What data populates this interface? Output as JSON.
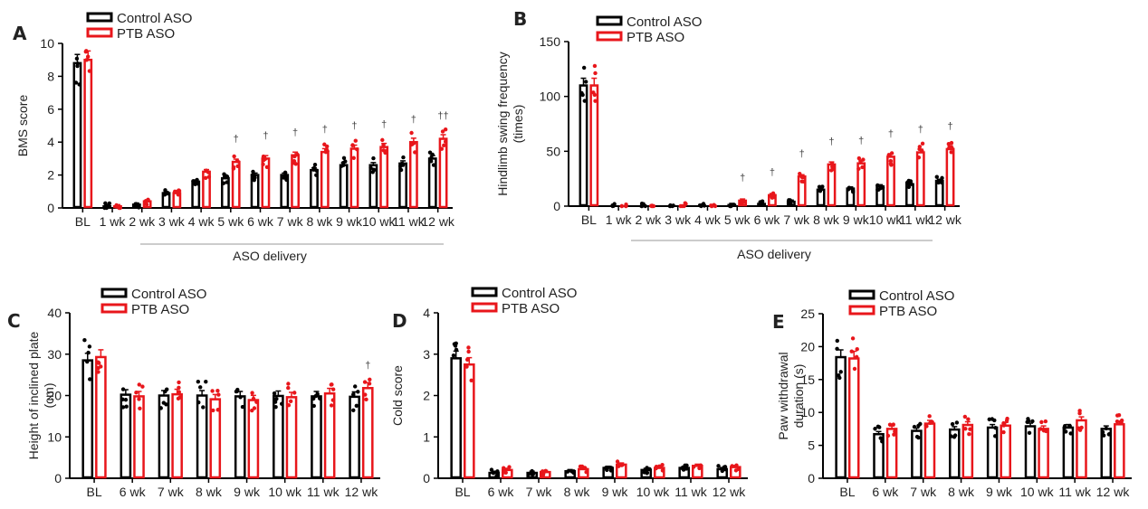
{
  "colors": {
    "control": "#000000",
    "ptb": "#e8161b"
  },
  "legend": {
    "control": "Control ASO",
    "ptb": "PTB ASO"
  },
  "chart_data": [
    {
      "panel": "A",
      "type": "bar",
      "ylabel": "BMS score",
      "xlabel": "ASO delivery",
      "ylim": [
        0,
        10
      ],
      "yticks": [
        0,
        2,
        4,
        6,
        8,
        10
      ],
      "categories": [
        "BL",
        "1 wk",
        "2 wk",
        "3 wk",
        "4 wk",
        "5 wk",
        "6 wk",
        "7 wk",
        "8 wk",
        "9 wk",
        "10 wk",
        "11 wk",
        "12 wk"
      ],
      "series": [
        {
          "name": "Control ASO",
          "values": [
            8.8,
            0.1,
            0.2,
            0.9,
            1.6,
            1.8,
            2.0,
            2.0,
            2.3,
            2.6,
            2.6,
            2.7,
            3.0
          ]
        },
        {
          "name": "PTB ASO",
          "values": [
            9.0,
            0.1,
            0.4,
            0.9,
            2.2,
            2.8,
            3.0,
            3.2,
            3.4,
            3.6,
            3.7,
            4.0,
            4.2
          ]
        }
      ],
      "annotations": [
        "",
        "",
        "",
        "",
        "",
        "†",
        "†",
        "†",
        "†",
        "†",
        "†",
        "†",
        "††"
      ],
      "bracket_label": "ASO delivery"
    },
    {
      "panel": "B",
      "type": "bar",
      "ylabel": "Hindlimb swing frequency",
      "ylabel2": "(times)",
      "xlabel": "ASO delivery",
      "ylim": [
        0,
        150
      ],
      "yticks": [
        0,
        50,
        100,
        150
      ],
      "categories": [
        "BL",
        "1 wk",
        "2 wk",
        "3 wk",
        "4 wk",
        "5 wk",
        "6 wk",
        "7 wk",
        "8 wk",
        "9 wk",
        "10 wk",
        "11 wk",
        "12 wk"
      ],
      "series": [
        {
          "name": "Control ASO",
          "values": [
            110,
            0,
            0,
            0,
            0,
            1,
            2,
            4,
            15,
            16,
            18,
            20,
            23
          ]
        },
        {
          "name": "PTB ASO",
          "values": [
            110,
            0,
            0,
            0,
            0,
            5,
            10,
            27,
            38,
            39,
            45,
            49,
            52
          ]
        }
      ],
      "annotations": [
        "",
        "",
        "",
        "",
        "",
        "†",
        "†",
        "†",
        "†",
        "†",
        "†",
        "†",
        "†"
      ],
      "bracket_label": "ASO delivery"
    },
    {
      "panel": "C",
      "type": "bar",
      "ylabel": "Height of inclined plate",
      "ylabel2": "(cm)",
      "xlabel": "",
      "ylim": [
        0,
        40
      ],
      "yticks": [
        0,
        10,
        20,
        30,
        40
      ],
      "categories": [
        "BL",
        "6 wk",
        "7 wk",
        "8 wk",
        "9 wk",
        "10 wk",
        "11 wk",
        "12 wk"
      ],
      "series": [
        {
          "name": "Control ASO",
          "values": [
            28.5,
            20.2,
            20.0,
            20.0,
            19.8,
            19.9,
            19.8,
            19.7
          ]
        },
        {
          "name": "PTB ASO",
          "values": [
            29.3,
            19.8,
            20.3,
            19.1,
            18.9,
            19.6,
            20.5,
            21.8
          ]
        }
      ],
      "annotations": [
        "",
        "",
        "",
        "",
        "",
        "",
        "",
        "†"
      ]
    },
    {
      "panel": "D",
      "type": "bar",
      "ylabel": "Cold score",
      "xlabel": "",
      "ylim": [
        0,
        4
      ],
      "yticks": [
        0,
        1,
        2,
        3,
        4
      ],
      "categories": [
        "BL",
        "6 wk",
        "7 wk",
        "8 wk",
        "9 wk",
        "10 wk",
        "11 wk",
        "12 wk"
      ],
      "series": [
        {
          "name": "Control ASO",
          "values": [
            2.9,
            0.13,
            0.13,
            0.17,
            0.25,
            0.2,
            0.25,
            0.22
          ]
        },
        {
          "name": "PTB ASO",
          "values": [
            2.75,
            0.2,
            0.15,
            0.22,
            0.33,
            0.25,
            0.3,
            0.27
          ]
        }
      ],
      "annotations": [
        "",
        "",
        "",
        "",
        "",
        "",
        "",
        ""
      ]
    },
    {
      "panel": "E",
      "type": "bar",
      "ylabel": "Paw withdrawal",
      "ylabel2": "duration (s)",
      "xlabel": "",
      "ylim": [
        0,
        25
      ],
      "yticks": [
        0,
        5,
        10,
        15,
        20,
        25
      ],
      "categories": [
        "BL",
        "6 wk",
        "7 wk",
        "8 wk",
        "9 wk",
        "10 wk",
        "11 wk",
        "12 wk"
      ],
      "series": [
        {
          "name": "Control ASO",
          "values": [
            18.4,
            6.7,
            7.2,
            7.4,
            7.7,
            7.9,
            7.7,
            7.5
          ]
        },
        {
          "name": "PTB ASO",
          "values": [
            18.2,
            7.5,
            8.3,
            8.1,
            8.0,
            7.5,
            8.8,
            8.2
          ]
        }
      ],
      "annotations": [
        "",
        "",
        "",
        "",
        "",
        "",
        "",
        ""
      ]
    }
  ]
}
